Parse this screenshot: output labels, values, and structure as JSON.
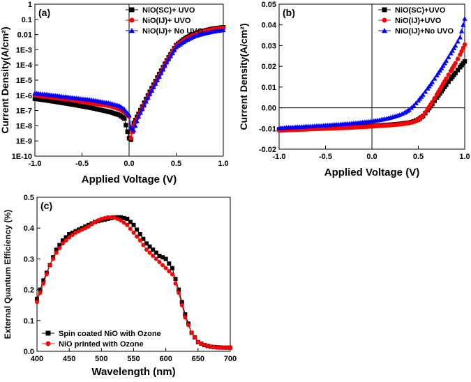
{
  "chart_data": [
    {
      "panel": "(a)",
      "type": "scatter",
      "xlabel": "Applied Voltage (V)",
      "ylabel": "Current Density(A/cm²)",
      "xlim": [
        -1.0,
        1.0
      ],
      "ylim": [
        1e-10,
        1
      ],
      "yscale": "log",
      "xticks": [
        -1.0,
        -0.5,
        0.0,
        0.5,
        1.0
      ],
      "xtick_labels": [
        "-1.0",
        "-0.5",
        "0.0",
        "0.5",
        "1.0"
      ],
      "yticks": [
        1,
        0.1,
        0.01,
        0.001,
        0.0001,
        1e-05,
        1e-06,
        1e-07,
        1e-08,
        1e-09,
        1e-10
      ],
      "ytick_labels": [
        "1",
        "0.1",
        "0.01",
        "1E-3",
        "1E-4",
        "1E-5",
        "1E-6",
        "1E-7",
        "1E-8",
        "1E-9",
        "1E-10"
      ],
      "legend_position": "top-right",
      "series": [
        {
          "name": "NiO(SC)+ UVO",
          "marker": "square",
          "color": "#000000",
          "x": [
            -1.0,
            -0.8,
            -0.6,
            -0.4,
            -0.2,
            -0.1,
            -0.05,
            0.0,
            0.02,
            0.05,
            0.1,
            0.2,
            0.3,
            0.4,
            0.5,
            0.6,
            0.7,
            0.8,
            0.9,
            1.0
          ],
          "y": [
            6e-07,
            4e-07,
            2.5e-07,
            1.5e-07,
            8e-08,
            5e-08,
            3e-08,
            1.5e-09,
            1.2e-09,
            1.5e-08,
            6e-08,
            1e-06,
            1.5e-05,
            0.0002,
            0.002,
            0.006,
            0.012,
            0.018,
            0.025,
            0.03
          ]
        },
        {
          "name": "NiO(IJ)+ UVO",
          "marker": "circle",
          "color": "#ff0000",
          "x": [
            -1.0,
            -0.8,
            -0.6,
            -0.4,
            -0.2,
            -0.1,
            -0.05,
            0.0,
            0.02,
            0.05,
            0.1,
            0.2,
            0.3,
            0.4,
            0.5,
            0.6,
            0.7,
            0.8,
            0.9,
            1.0
          ],
          "y": [
            1e-06,
            7e-07,
            5e-07,
            3e-07,
            2e-07,
            1.2e-07,
            8e-08,
            4e-08,
            1.5e-09,
            1e-08,
            5e-08,
            8e-07,
            1.2e-05,
            0.00018,
            0.0018,
            0.005,
            0.011,
            0.017,
            0.023,
            0.028
          ]
        },
        {
          "name": "NiO(IJ)+ No UVO",
          "marker": "triangle",
          "color": "#0000ff",
          "x": [
            -1.0,
            -0.8,
            -0.6,
            -0.4,
            -0.2,
            -0.1,
            -0.05,
            0.0,
            0.02,
            0.05,
            0.1,
            0.2,
            0.3,
            0.4,
            0.5,
            0.6,
            0.7,
            0.8,
            0.9,
            1.0
          ],
          "y": [
            1.4e-06,
            1e-06,
            7e-07,
            5e-07,
            3e-07,
            2e-07,
            1.2e-07,
            5e-08,
            8e-09,
            5e-09,
            4e-08,
            7e-07,
            1e-05,
            0.00015,
            0.0015,
            0.004,
            0.008,
            0.012,
            0.016,
            0.02
          ]
        }
      ]
    },
    {
      "panel": "(b)",
      "type": "scatter",
      "xlabel": "Applied Voltage (V)",
      "ylabel": "Current Density(A/cm²)",
      "xlim": [
        -1.0,
        1.0
      ],
      "ylim": [
        -0.02,
        0.05
      ],
      "xticks": [
        -1.0,
        -0.5,
        0.0,
        0.5,
        1.0
      ],
      "xtick_labels": [
        "-1.0",
        "-0.5",
        "0.0",
        "0.5",
        "1.0"
      ],
      "yticks": [
        -0.02,
        -0.01,
        0.0,
        0.01,
        0.02,
        0.03,
        0.04,
        0.05
      ],
      "ytick_labels": [
        "-0.02",
        "-0.01",
        "0.00",
        "0.01",
        "0.02",
        "0.03",
        "0.04",
        "0.05"
      ],
      "legend_position": "top-right",
      "series": [
        {
          "name": "NiO(SC)+UVO",
          "marker": "square",
          "color": "#000000",
          "x": [
            -1.0,
            -0.8,
            -0.6,
            -0.4,
            -0.2,
            0.0,
            0.2,
            0.3,
            0.4,
            0.45,
            0.5,
            0.55,
            0.6,
            0.65,
            0.7,
            0.75,
            0.8,
            0.85,
            0.9,
            0.95,
            1.0
          ],
          "y": [
            -0.0105,
            -0.0102,
            -0.0099,
            -0.0096,
            -0.0092,
            -0.0088,
            -0.0082,
            -0.0078,
            -0.0072,
            -0.0066,
            -0.0057,
            -0.004,
            -0.0012,
            0.0018,
            0.0049,
            0.008,
            0.0111,
            0.014,
            0.0168,
            0.0196,
            0.0224
          ]
        },
        {
          "name": "NiO(IJ)+UVO",
          "marker": "circle",
          "color": "#ff0000",
          "x": [
            -1.0,
            -0.8,
            -0.6,
            -0.4,
            -0.2,
            0.0,
            0.2,
            0.3,
            0.4,
            0.45,
            0.5,
            0.55,
            0.6,
            0.65,
            0.7,
            0.75,
            0.8,
            0.85,
            0.9,
            0.95,
            1.0
          ],
          "y": [
            -0.011,
            -0.0106,
            -0.0102,
            -0.0099,
            -0.0095,
            -0.009,
            -0.0084,
            -0.008,
            -0.0074,
            -0.0068,
            -0.0058,
            -0.0038,
            -0.0008,
            0.0027,
            0.0064,
            0.0102,
            0.014,
            0.0178,
            0.0215,
            0.0256,
            0.0305
          ]
        },
        {
          "name": "NiO(IJ)+No UVO",
          "marker": "triangle",
          "color": "#0000ff",
          "x": [
            -1.0,
            -0.8,
            -0.6,
            -0.4,
            -0.2,
            0.0,
            0.1,
            0.2,
            0.3,
            0.35,
            0.4,
            0.45,
            0.5,
            0.55,
            0.6,
            0.65,
            0.7,
            0.75,
            0.8,
            0.85,
            0.9,
            0.95,
            1.0
          ],
          "y": [
            -0.0098,
            -0.0093,
            -0.0088,
            -0.0082,
            -0.0075,
            -0.0065,
            -0.0058,
            -0.0048,
            -0.0034,
            -0.0024,
            -0.001,
            0.001,
            0.0035,
            0.0063,
            0.0093,
            0.0124,
            0.0157,
            0.0191,
            0.0227,
            0.0263,
            0.03,
            0.034,
            0.043
          ]
        }
      ]
    },
    {
      "panel": "(c)",
      "type": "line",
      "xlabel": "Wavelength (nm)",
      "ylabel": "External Quantum Efficiency (%)",
      "xlim": [
        400,
        700
      ],
      "ylim": [
        0.0,
        0.5
      ],
      "xticks": [
        400,
        450,
        500,
        550,
        600,
        650,
        700
      ],
      "xtick_labels": [
        "400",
        "450",
        "500",
        "550",
        "600",
        "650",
        "700"
      ],
      "yticks": [
        0.0,
        0.1,
        0.2,
        0.3,
        0.4,
        0.5
      ],
      "ytick_labels": [
        "0.0",
        "0.1",
        "0.2",
        "0.3",
        "0.4",
        "0.5"
      ],
      "legend_position": "bottom-left",
      "series": [
        {
          "name": "Spin coated NiO with Ozone",
          "marker": "square",
          "color": "#000000",
          "x": [
            400,
            410,
            420,
            430,
            440,
            450,
            460,
            470,
            480,
            490,
            500,
            510,
            520,
            530,
            540,
            550,
            560,
            570,
            580,
            590,
            600,
            610,
            620,
            630,
            640,
            650,
            660,
            670,
            680,
            690,
            700
          ],
          "y": [
            0.17,
            0.23,
            0.28,
            0.33,
            0.36,
            0.38,
            0.39,
            0.4,
            0.41,
            0.42,
            0.425,
            0.43,
            0.435,
            0.435,
            0.43,
            0.41,
            0.38,
            0.35,
            0.33,
            0.31,
            0.3,
            0.27,
            0.2,
            0.12,
            0.06,
            0.03,
            0.02,
            0.015,
            0.013,
            0.012,
            0.012
          ]
        },
        {
          "name": "NiO printed with Ozone",
          "marker": "circle",
          "color": "#ff0000",
          "x": [
            400,
            410,
            420,
            430,
            440,
            450,
            460,
            470,
            480,
            490,
            500,
            510,
            520,
            530,
            540,
            550,
            560,
            570,
            580,
            590,
            600,
            610,
            620,
            630,
            640,
            650,
            660,
            670,
            680,
            690,
            700
          ],
          "y": [
            0.16,
            0.22,
            0.28,
            0.32,
            0.35,
            0.37,
            0.385,
            0.395,
            0.405,
            0.42,
            0.43,
            0.435,
            0.435,
            0.425,
            0.41,
            0.385,
            0.36,
            0.33,
            0.31,
            0.29,
            0.27,
            0.25,
            0.19,
            0.11,
            0.06,
            0.03,
            0.02,
            0.015,
            0.012,
            0.012,
            0.012
          ]
        }
      ]
    }
  ]
}
